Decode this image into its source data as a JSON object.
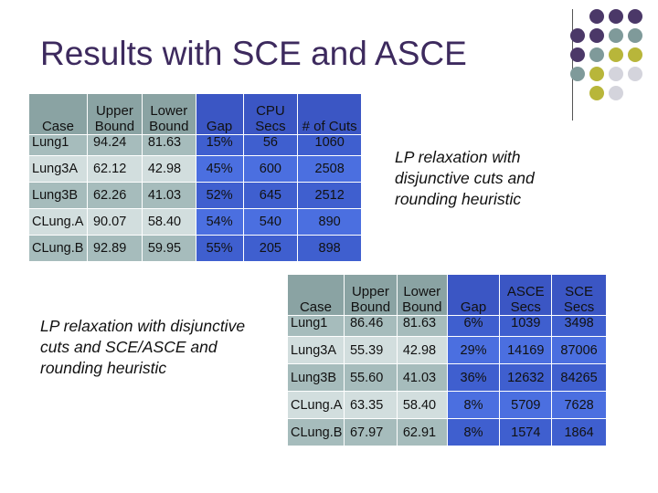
{
  "slide": {
    "title": "Results with SCE and ASCE",
    "note1": "LP relaxation with disjunctive cuts and rounding heuristic",
    "note2": "LP relaxation with disjunctive cuts and SCE/ASCE and rounding heuristic"
  },
  "table1": {
    "headers": [
      "Case",
      "Upper Bound",
      "Lower Bound",
      "Gap",
      "CPU Secs",
      "# of Cuts"
    ],
    "rows": [
      [
        "Lung1",
        "94.24",
        "81.63",
        "15%",
        "56",
        "1060"
      ],
      [
        "Lung3A",
        "62.12",
        "42.98",
        "45%",
        "600",
        "2508"
      ],
      [
        "Lung3B",
        "62.26",
        "41.03",
        "52%",
        "645",
        "2512"
      ],
      [
        "CLung.A",
        "90.07",
        "58.40",
        "54%",
        "540",
        "890"
      ],
      [
        "CLung.B",
        "92.89",
        "59.95",
        "55%",
        "205",
        "898"
      ]
    ]
  },
  "table2": {
    "headers": [
      "Case",
      "Upper Bound",
      "Lower Bound",
      "Gap",
      "ASCE Secs",
      "SCE Secs"
    ],
    "rows": [
      [
        "Lung1",
        "86.46",
        "81.63",
        "6%",
        "1039",
        "3498"
      ],
      [
        "Lung3A",
        "55.39",
        "42.98",
        "29%",
        "14169",
        "87006"
      ],
      [
        "Lung3B",
        "55.60",
        "41.03",
        "36%",
        "12632",
        "84265"
      ],
      [
        "CLung.A",
        "63.35",
        "58.40",
        "8%",
        "5709",
        "7628"
      ],
      [
        "CLung.B",
        "67.97",
        "62.91",
        "8%",
        "1574",
        "1864"
      ]
    ]
  },
  "colors": {
    "title": "#3d2a5e",
    "accent_teal": "#8aa3a3",
    "accent_blue": "#3b56c4",
    "dot_purple": "#4b3868",
    "dot_teal": "#7f9a9a",
    "dot_olive": "#b8b63a",
    "dot_gray": "#d4d4dc"
  }
}
